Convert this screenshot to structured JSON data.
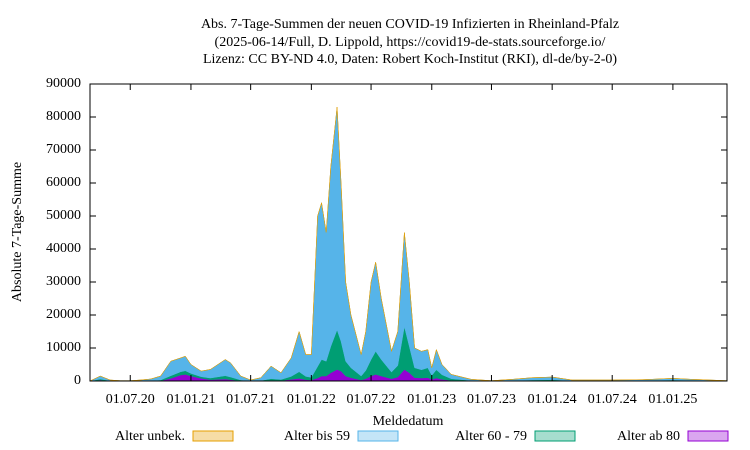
{
  "chart_data": {
    "type": "stacked-area",
    "title": "Abs. 7-Tage-Summen der neuen COVID-19 Infizierten in Rheinland-Pfalz",
    "subtitle": [
      "(2025-06-14/Full, D. Lippold, https://covid19-de-stats.sourceforge.io/",
      "Lizenz: CC BY-ND 4.0, Daten: Robert Koch-Institut (RKI), dl-de/by-2-0)"
    ],
    "x_label": "Meldedatum",
    "y_label": "Absolute 7-Tage-Summe",
    "x": [
      "01.03.20",
      "01.04.20",
      "01.05.20",
      "01.06.20",
      "01.07.20",
      "01.08.20",
      "01.09.20",
      "01.10.20",
      "01.11.20",
      "01.12.20",
      "15.12.20",
      "01.01.21",
      "01.02.21",
      "01.03.21",
      "15.04.21",
      "01.05.21",
      "01.06.21",
      "01.07.21",
      "01.08.21",
      "01.09.21",
      "01.10.21",
      "01.11.21",
      "25.11.21",
      "15.12.21",
      "01.01.22",
      "20.01.22",
      "01.02.22",
      "15.02.22",
      "01.03.22",
      "20.03.22",
      "01.04.22",
      "15.04.22",
      "01.05.22",
      "01.06.22",
      "15.06.22",
      "01.07.22",
      "15.07.22",
      "01.08.22",
      "01.09.22",
      "20.09.22",
      "10.10.22",
      "25.10.22",
      "10.11.22",
      "01.12.22",
      "20.12.22",
      "01.01.23",
      "15.01.23",
      "01.02.23",
      "01.03.23",
      "01.05.23",
      "01.07.23",
      "01.09.23",
      "01.11.23",
      "01.01.24",
      "01.03.24",
      "01.07.24",
      "01.10.24",
      "01.01.25",
      "01.03.25",
      "14.06.25"
    ],
    "series": [
      {
        "name": "Alter ab 80",
        "color": "#9400d3",
        "values": [
          0,
          300,
          50,
          10,
          10,
          20,
          40,
          100,
          800,
          1800,
          2000,
          1500,
          800,
          400,
          600,
          400,
          100,
          20,
          50,
          200,
          150,
          500,
          800,
          400,
          300,
          900,
          1500,
          1500,
          2500,
          3500,
          3000,
          1500,
          1000,
          300,
          700,
          1500,
          2000,
          1500,
          700,
          1200,
          3500,
          2500,
          1000,
          900,
          1000,
          500,
          900,
          500,
          200,
          50,
          10,
          50,
          100,
          150,
          30,
          30,
          40,
          100,
          60,
          10
        ]
      },
      {
        "name": "Alter 60 - 79",
        "color": "#009e73",
        "values": [
          0,
          300,
          50,
          20,
          10,
          30,
          60,
          200,
          800,
          1000,
          1100,
          800,
          500,
          500,
          1000,
          800,
          200,
          30,
          100,
          500,
          300,
          900,
          2000,
          1000,
          800,
          3500,
          5000,
          4500,
          8000,
          12000,
          9000,
          4500,
          3000,
          1200,
          2500,
          5000,
          7000,
          5000,
          2000,
          3500,
          13000,
          8000,
          3000,
          2500,
          3000,
          1200,
          2500,
          1400,
          500,
          100,
          20,
          100,
          200,
          250,
          60,
          60,
          80,
          200,
          120,
          20
        ]
      },
      {
        "name": "Alter bis 59",
        "color": "#56b4e9",
        "values": [
          0,
          900,
          200,
          70,
          80,
          250,
          500,
          1200,
          4400,
          4200,
          4400,
          2700,
          1700,
          2600,
          4900,
          4300,
          1200,
          250,
          850,
          3800,
          2050,
          5600,
          12200,
          6600,
          6900,
          45600,
          47500,
          39000,
          54500,
          67500,
          48000,
          24000,
          16000,
          6500,
          11800,
          23500,
          27000,
          18500,
          6300,
          10300,
          28500,
          19500,
          6000,
          5600,
          5500,
          2300,
          6100,
          3100,
          1300,
          350,
          70,
          350,
          700,
          800,
          210,
          210,
          280,
          500,
          320,
          70
        ]
      },
      {
        "name": "Alter unbek.",
        "color": "#e69f00",
        "values": [
          0,
          0,
          0,
          0,
          0,
          0,
          0,
          0,
          0,
          0,
          0,
          0,
          0,
          0,
          0,
          0,
          0,
          0,
          0,
          0,
          0,
          0,
          0,
          0,
          0,
          0,
          0,
          0,
          0,
          0,
          0,
          0,
          0,
          0,
          0,
          0,
          0,
          0,
          0,
          0,
          0,
          0,
          0,
          0,
          0,
          0,
          0,
          0,
          0,
          0,
          0,
          0,
          0,
          0,
          0,
          0,
          0,
          0,
          0,
          0
        ]
      }
    ],
    "legend_order": [
      3,
      2,
      1,
      0
    ],
    "xlim": [
      "01.03.20",
      "14.06.25"
    ],
    "xticks": [
      "01.07.20",
      "01.01.21",
      "01.07.21",
      "01.01.22",
      "01.07.22",
      "01.01.23",
      "01.07.23",
      "01.01.24",
      "01.07.24",
      "01.01.25"
    ],
    "ylim": [
      0,
      90000
    ],
    "yticks": [
      0,
      10000,
      20000,
      30000,
      40000,
      50000,
      60000,
      70000,
      80000,
      90000
    ],
    "legend": "bottom"
  }
}
